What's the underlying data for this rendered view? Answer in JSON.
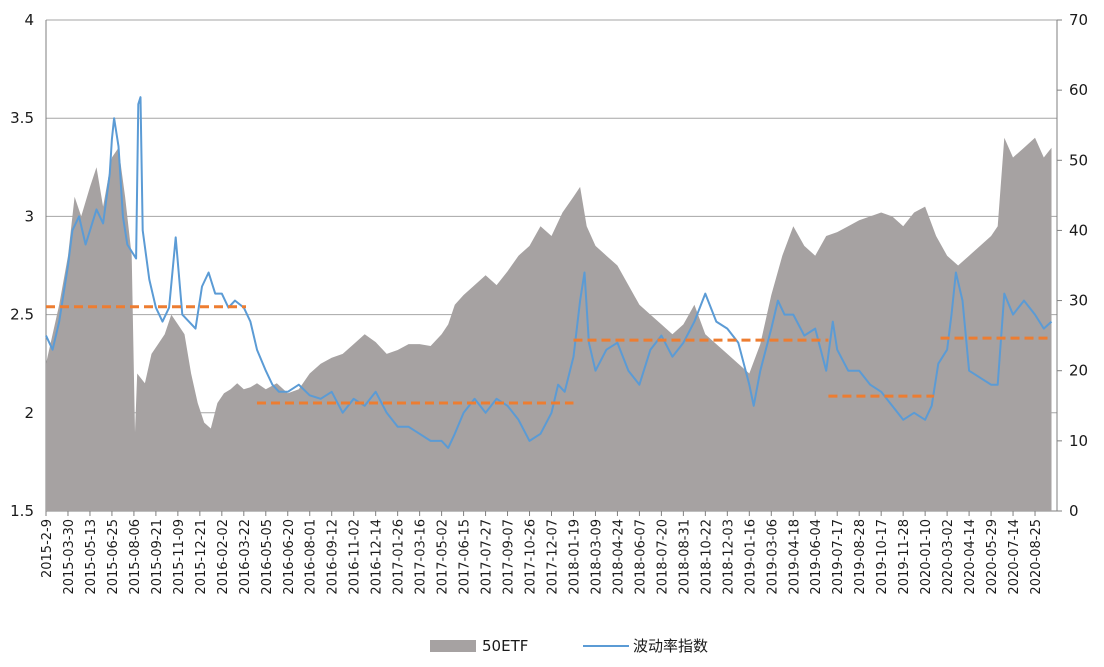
{
  "chart_data": {
    "type": "area",
    "title": "",
    "xlabel": "",
    "ylabel_left": "",
    "ylabel_right": "",
    "y_left": {
      "min": 1.5,
      "max": 4,
      "ticks": [
        "1.5",
        "2",
        "2.5",
        "3",
        "3.5",
        "4"
      ]
    },
    "y_right": {
      "min": 0,
      "max": 70,
      "ticks": [
        "0",
        "10",
        "20",
        "30",
        "40",
        "50",
        "60",
        "70"
      ]
    },
    "grid": "horizontal",
    "legend_position": "bottom",
    "x_tick_labels": [
      "2015-2-9",
      "2015-03-30",
      "2015-05-13",
      "2015-06-25",
      "2015-08-06",
      "2015-09-21",
      "2015-11-09",
      "2015-12-21",
      "2016-02-02",
      "2016-03-22",
      "2016-05-05",
      "2016-06-20",
      "2016-08-01",
      "2016-09-12",
      "2016-11-02",
      "2016-12-14",
      "2017-01-26",
      "2017-03-16",
      "2017-05-02",
      "2017-06-15",
      "2017-07-27",
      "2017-09-07",
      "2017-10-26",
      "2017-12-07",
      "2018-01-19",
      "2018-03-09",
      "2018-04-24",
      "2018-06-07",
      "2018-07-20",
      "2018-08-31",
      "2018-10-22",
      "2018-12-03",
      "2019-01-16",
      "2019-03-06",
      "2019-04-18",
      "2019-06-04",
      "2019-07-17",
      "2019-08-28",
      "2019-10-17",
      "2019-11-28",
      "2020-01-10",
      "2020-03-02",
      "2020-04-14",
      "2020-05-29",
      "2020-07-14",
      "2020-08-25"
    ],
    "series": [
      {
        "name": "50ETF",
        "axis": "left",
        "kind": "area",
        "color": "#a6a2a2",
        "points": [
          [
            0,
            2.25
          ],
          [
            0.3,
            2.4
          ],
          [
            0.6,
            2.55
          ],
          [
            1,
            2.8
          ],
          [
            1.3,
            3.1
          ],
          [
            1.6,
            3.0
          ],
          [
            2,
            3.15
          ],
          [
            2.3,
            3.25
          ],
          [
            2.6,
            3.05
          ],
          [
            3,
            3.3
          ],
          [
            3.3,
            3.35
          ],
          [
            3.6,
            3.1
          ],
          [
            3.9,
            2.8
          ],
          [
            4.05,
            1.9
          ],
          [
            4.15,
            2.2
          ],
          [
            4.5,
            2.15
          ],
          [
            4.8,
            2.3
          ],
          [
            5.1,
            2.35
          ],
          [
            5.4,
            2.4
          ],
          [
            5.7,
            2.5
          ],
          [
            6,
            2.45
          ],
          [
            6.3,
            2.4
          ],
          [
            6.6,
            2.2
          ],
          [
            6.9,
            2.05
          ],
          [
            7.2,
            1.95
          ],
          [
            7.5,
            1.92
          ],
          [
            7.8,
            2.05
          ],
          [
            8.1,
            2.1
          ],
          [
            8.4,
            2.12
          ],
          [
            8.7,
            2.15
          ],
          [
            9,
            2.12
          ],
          [
            9.3,
            2.13
          ],
          [
            9.6,
            2.15
          ],
          [
            10,
            2.12
          ],
          [
            10.5,
            2.15
          ],
          [
            11,
            2.1
          ],
          [
            11.5,
            2.12
          ],
          [
            12,
            2.2
          ],
          [
            12.5,
            2.25
          ],
          [
            13,
            2.28
          ],
          [
            13.5,
            2.3
          ],
          [
            14,
            2.35
          ],
          [
            14.5,
            2.4
          ],
          [
            15,
            2.36
          ],
          [
            15.5,
            2.3
          ],
          [
            16,
            2.32
          ],
          [
            16.5,
            2.35
          ],
          [
            17,
            2.35
          ],
          [
            17.5,
            2.34
          ],
          [
            18,
            2.4
          ],
          [
            18.3,
            2.45
          ],
          [
            18.6,
            2.55
          ],
          [
            19,
            2.6
          ],
          [
            19.5,
            2.65
          ],
          [
            20,
            2.7
          ],
          [
            20.5,
            2.65
          ],
          [
            21,
            2.72
          ],
          [
            21.5,
            2.8
          ],
          [
            22,
            2.85
          ],
          [
            22.5,
            2.95
          ],
          [
            23,
            2.9
          ],
          [
            23.5,
            3.02
          ],
          [
            24,
            3.1
          ],
          [
            24.3,
            3.15
          ],
          [
            24.6,
            2.95
          ],
          [
            25,
            2.85
          ],
          [
            25.5,
            2.8
          ],
          [
            26,
            2.75
          ],
          [
            26.5,
            2.65
          ],
          [
            27,
            2.55
          ],
          [
            27.5,
            2.5
          ],
          [
            28,
            2.45
          ],
          [
            28.5,
            2.4
          ],
          [
            29,
            2.45
          ],
          [
            29.5,
            2.55
          ],
          [
            30,
            2.4
          ],
          [
            30.5,
            2.35
          ],
          [
            31,
            2.3
          ],
          [
            31.5,
            2.25
          ],
          [
            32,
            2.2
          ],
          [
            32.5,
            2.35
          ],
          [
            33,
            2.6
          ],
          [
            33.5,
            2.8
          ],
          [
            34,
            2.95
          ],
          [
            34.5,
            2.85
          ],
          [
            35,
            2.8
          ],
          [
            35.5,
            2.9
          ],
          [
            36,
            2.92
          ],
          [
            36.5,
            2.95
          ],
          [
            37,
            2.98
          ],
          [
            37.5,
            3.0
          ],
          [
            38,
            3.02
          ],
          [
            38.5,
            3.0
          ],
          [
            39,
            2.95
          ],
          [
            39.5,
            3.02
          ],
          [
            40,
            3.05
          ],
          [
            40.5,
            2.9
          ],
          [
            41,
            2.8
          ],
          [
            41.5,
            2.75
          ],
          [
            42,
            2.8
          ],
          [
            42.5,
            2.85
          ],
          [
            43,
            2.9
          ],
          [
            43.3,
            2.95
          ],
          [
            43.6,
            3.4
          ],
          [
            44,
            3.3
          ],
          [
            44.5,
            3.35
          ],
          [
            45,
            3.4
          ],
          [
            45.4,
            3.3
          ],
          [
            45.75,
            3.35
          ]
        ]
      },
      {
        "name": "波动率指数",
        "axis": "right",
        "kind": "line",
        "color": "#5b9bd5",
        "points": [
          [
            0,
            25
          ],
          [
            0.3,
            23
          ],
          [
            0.6,
            27
          ],
          [
            1,
            35
          ],
          [
            1.2,
            40
          ],
          [
            1.5,
            42
          ],
          [
            1.8,
            38
          ],
          [
            2,
            40
          ],
          [
            2.3,
            43
          ],
          [
            2.6,
            41
          ],
          [
            2.9,
            48
          ],
          [
            3,
            53
          ],
          [
            3.1,
            56
          ],
          [
            3.3,
            52
          ],
          [
            3.5,
            42
          ],
          [
            3.7,
            38
          ],
          [
            3.9,
            37
          ],
          [
            4.1,
            36
          ],
          [
            4.2,
            58
          ],
          [
            4.3,
            59
          ],
          [
            4.4,
            40
          ],
          [
            4.7,
            33
          ],
          [
            5,
            29
          ],
          [
            5.3,
            27
          ],
          [
            5.6,
            29
          ],
          [
            5.9,
            39
          ],
          [
            6.2,
            28
          ],
          [
            6.5,
            27
          ],
          [
            6.8,
            26
          ],
          [
            7.1,
            32
          ],
          [
            7.4,
            34
          ],
          [
            7.7,
            31
          ],
          [
            8,
            31
          ],
          [
            8.3,
            29
          ],
          [
            8.6,
            30
          ],
          [
            9,
            29
          ],
          [
            9.3,
            27
          ],
          [
            9.6,
            23
          ],
          [
            10,
            20
          ],
          [
            10.3,
            18
          ],
          [
            10.6,
            17
          ],
          [
            11,
            17
          ],
          [
            11.5,
            18
          ],
          [
            12,
            16.5
          ],
          [
            12.5,
            16
          ],
          [
            13,
            17
          ],
          [
            13.5,
            14
          ],
          [
            14,
            16
          ],
          [
            14.5,
            15
          ],
          [
            15,
            17
          ],
          [
            15.5,
            14
          ],
          [
            16,
            12
          ],
          [
            16.5,
            12
          ],
          [
            17,
            11
          ],
          [
            17.5,
            10
          ],
          [
            18,
            10
          ],
          [
            18.3,
            9
          ],
          [
            18.6,
            11
          ],
          [
            19,
            14
          ],
          [
            19.5,
            16
          ],
          [
            20,
            14
          ],
          [
            20.5,
            16
          ],
          [
            21,
            15
          ],
          [
            21.5,
            13
          ],
          [
            22,
            10
          ],
          [
            22.5,
            11
          ],
          [
            23,
            14
          ],
          [
            23.3,
            18
          ],
          [
            23.6,
            17
          ],
          [
            24,
            22
          ],
          [
            24.3,
            30
          ],
          [
            24.5,
            34
          ],
          [
            24.7,
            24
          ],
          [
            25,
            20
          ],
          [
            25.5,
            23
          ],
          [
            26,
            24
          ],
          [
            26.5,
            20
          ],
          [
            27,
            18
          ],
          [
            27.5,
            23
          ],
          [
            28,
            25
          ],
          [
            28.5,
            22
          ],
          [
            29,
            24
          ],
          [
            29.5,
            27
          ],
          [
            30,
            31
          ],
          [
            30.5,
            27
          ],
          [
            31,
            26
          ],
          [
            31.5,
            24
          ],
          [
            32,
            18
          ],
          [
            32.2,
            15
          ],
          [
            32.5,
            20
          ],
          [
            33,
            26
          ],
          [
            33.3,
            30
          ],
          [
            33.6,
            28
          ],
          [
            34,
            28
          ],
          [
            34.5,
            25
          ],
          [
            35,
            26
          ],
          [
            35.5,
            20
          ],
          [
            35.8,
            27
          ],
          [
            36,
            23
          ],
          [
            36.5,
            20
          ],
          [
            37,
            20
          ],
          [
            37.5,
            18
          ],
          [
            38,
            17
          ],
          [
            38.5,
            15
          ],
          [
            39,
            13
          ],
          [
            39.5,
            14
          ],
          [
            40,
            13
          ],
          [
            40.3,
            15
          ],
          [
            40.6,
            21
          ],
          [
            41,
            23
          ],
          [
            41.2,
            28
          ],
          [
            41.4,
            34
          ],
          [
            41.7,
            30
          ],
          [
            42,
            20
          ],
          [
            42.5,
            19
          ],
          [
            43,
            18
          ],
          [
            43.3,
            18
          ],
          [
            43.6,
            31
          ],
          [
            44,
            28
          ],
          [
            44.5,
            30
          ],
          [
            45,
            28
          ],
          [
            45.4,
            26
          ],
          [
            45.75,
            27
          ]
        ]
      },
      {
        "name": "",
        "axis": "left",
        "kind": "dashed-segments",
        "color": "#ed7d31",
        "segments": [
          [
            0,
            9.1,
            2.54
          ],
          [
            9.6,
            24.0,
            2.05
          ],
          [
            24.0,
            35.6,
            2.37
          ],
          [
            35.6,
            40.4,
            2.085
          ],
          [
            40.7,
            45.75,
            2.38
          ]
        ]
      }
    ]
  },
  "legend": [
    {
      "label": "50ETF",
      "swatch": "area",
      "color": "#a6a2a2"
    },
    {
      "label": "波动率指数",
      "swatch": "line",
      "color": "#5b9bd5"
    }
  ]
}
